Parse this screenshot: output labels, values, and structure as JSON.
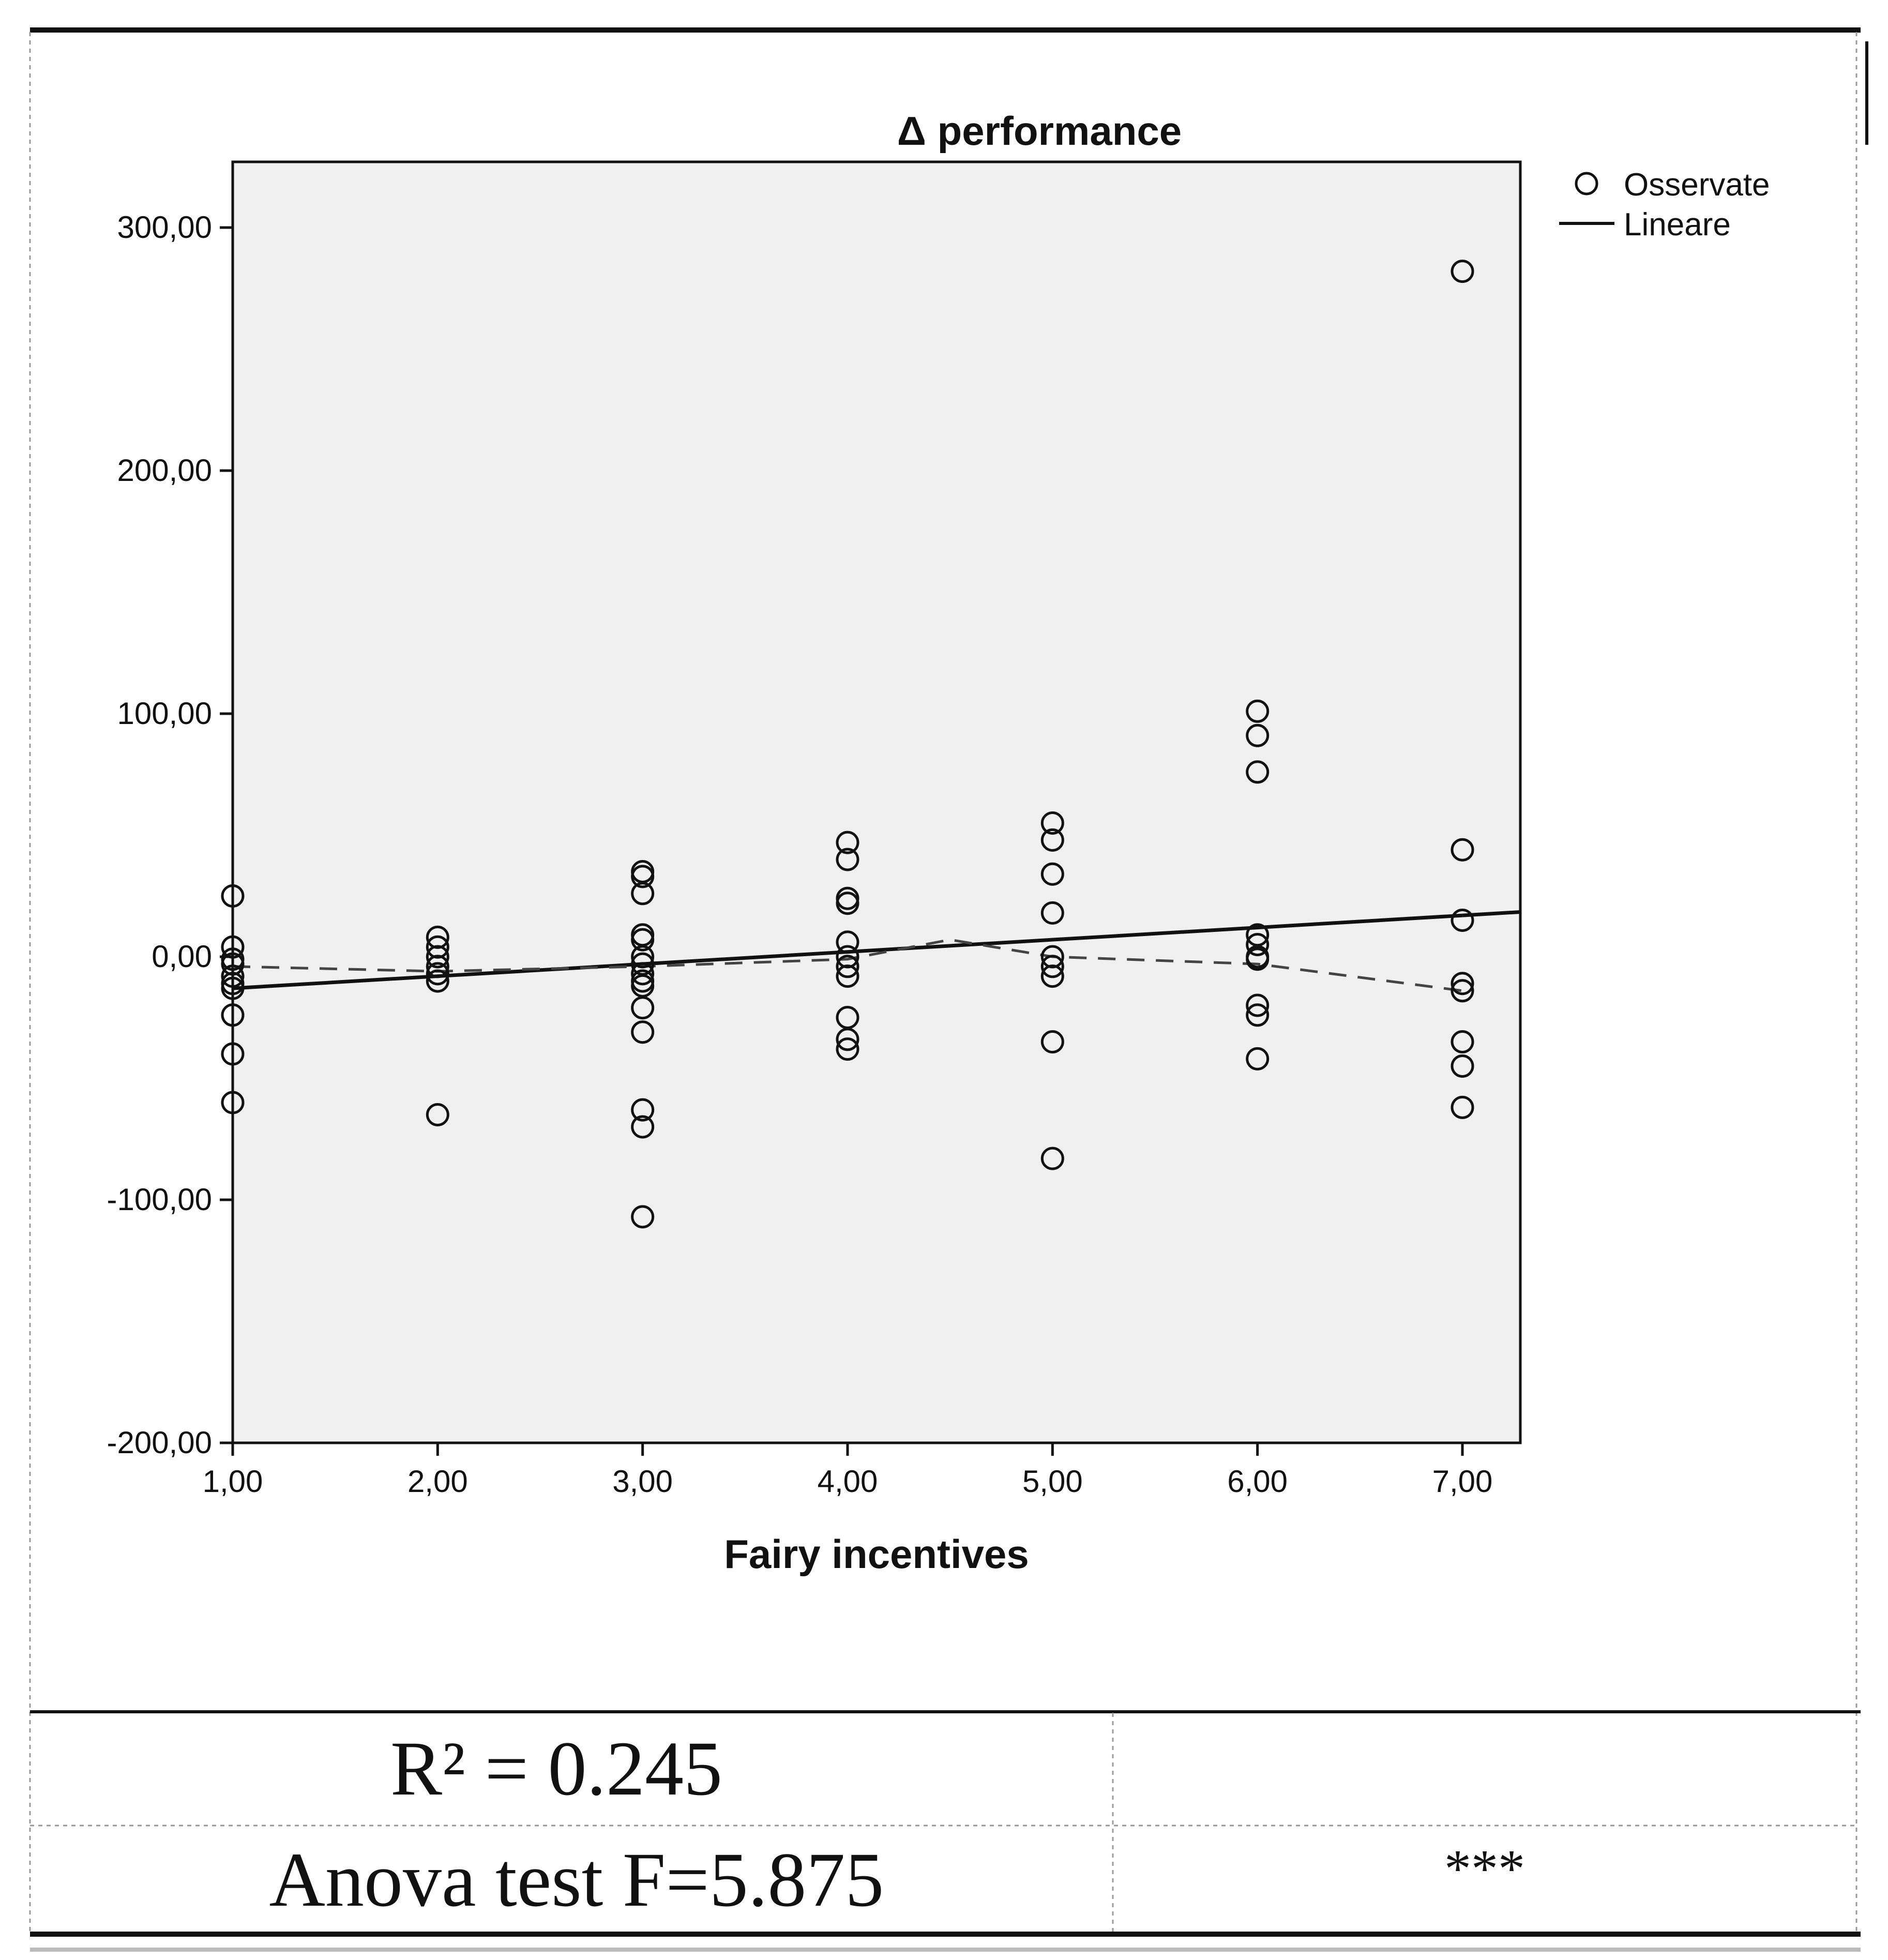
{
  "chart_data": {
    "type": "scatter",
    "title": "Δ performance",
    "xlabel": "Fairy incentives",
    "ylabel": "",
    "xlim": [
      1,
      7
    ],
    "ylim": [
      -200,
      300
    ],
    "x_ticks": [
      "1,00",
      "2,00",
      "3,00",
      "4,00",
      "5,00",
      "6,00",
      "7,00"
    ],
    "y_ticks": [
      "300,00",
      "200,00",
      "100,00",
      "0,00",
      "-100,00",
      "-200,00"
    ],
    "grid": false,
    "legend_position": "top-right",
    "legend": {
      "observed_label": "Osservate",
      "linear_label": "Lineare"
    },
    "series": [
      {
        "name": "Osservate",
        "kind": "points",
        "points": [
          [
            1,
            25
          ],
          [
            1,
            4
          ],
          [
            1,
            -1
          ],
          [
            1,
            -3
          ],
          [
            1,
            -8
          ],
          [
            1,
            -11
          ],
          [
            1,
            -13
          ],
          [
            1,
            -24
          ],
          [
            1,
            -40
          ],
          [
            1,
            -60
          ],
          [
            2,
            8
          ],
          [
            2,
            4
          ],
          [
            2,
            0
          ],
          [
            2,
            -4
          ],
          [
            2,
            -7
          ],
          [
            2,
            -10
          ],
          [
            2,
            -65
          ],
          [
            3,
            35
          ],
          [
            3,
            33
          ],
          [
            3,
            26
          ],
          [
            3,
            9
          ],
          [
            3,
            7
          ],
          [
            3,
            0
          ],
          [
            3,
            -3
          ],
          [
            3,
            -7
          ],
          [
            3,
            -10
          ],
          [
            3,
            -12
          ],
          [
            3,
            -21
          ],
          [
            3,
            -31
          ],
          [
            3,
            -63
          ],
          [
            3,
            -70
          ],
          [
            3,
            -107
          ],
          [
            4,
            47
          ],
          [
            4,
            40
          ],
          [
            4,
            24
          ],
          [
            4,
            22
          ],
          [
            4,
            6
          ],
          [
            4,
            0
          ],
          [
            4,
            -4
          ],
          [
            4,
            -8
          ],
          [
            4,
            -25
          ],
          [
            4,
            -34
          ],
          [
            4,
            -38
          ],
          [
            5,
            55
          ],
          [
            5,
            48
          ],
          [
            5,
            34
          ],
          [
            5,
            18
          ],
          [
            5,
            0
          ],
          [
            5,
            -4
          ],
          [
            5,
            -8
          ],
          [
            5,
            -35
          ],
          [
            5,
            -83
          ],
          [
            6,
            101
          ],
          [
            6,
            91
          ],
          [
            6,
            76
          ],
          [
            6,
            9
          ],
          [
            6,
            5
          ],
          [
            6,
            0
          ],
          [
            6,
            -1
          ],
          [
            6,
            -20
          ],
          [
            6,
            -24
          ],
          [
            6,
            -42
          ],
          [
            7,
            282
          ],
          [
            7,
            44
          ],
          [
            7,
            15
          ],
          [
            7,
            -11
          ],
          [
            7,
            -14
          ],
          [
            7,
            -35
          ],
          [
            7,
            -45
          ],
          [
            7,
            -62
          ]
        ]
      },
      {
        "name": "Lineare",
        "kind": "line",
        "style": "solid",
        "points": [
          [
            1,
            -13
          ],
          [
            7,
            17
          ]
        ]
      },
      {
        "kind": "line",
        "style": "dashed",
        "points": [
          [
            1,
            -4
          ],
          [
            2,
            -6
          ],
          [
            3,
            -4
          ],
          [
            4,
            -1
          ],
          [
            4.5,
            7
          ],
          [
            5,
            0
          ],
          [
            6,
            -3
          ],
          [
            7,
            -14
          ]
        ]
      }
    ]
  },
  "stats": {
    "r2": "R² = 0.245",
    "anova": "Anova test F=5.875",
    "significance": "***"
  },
  "colors": {
    "plot_bg": "#f0f0f0",
    "ink": "#111111",
    "border": "#111111"
  }
}
